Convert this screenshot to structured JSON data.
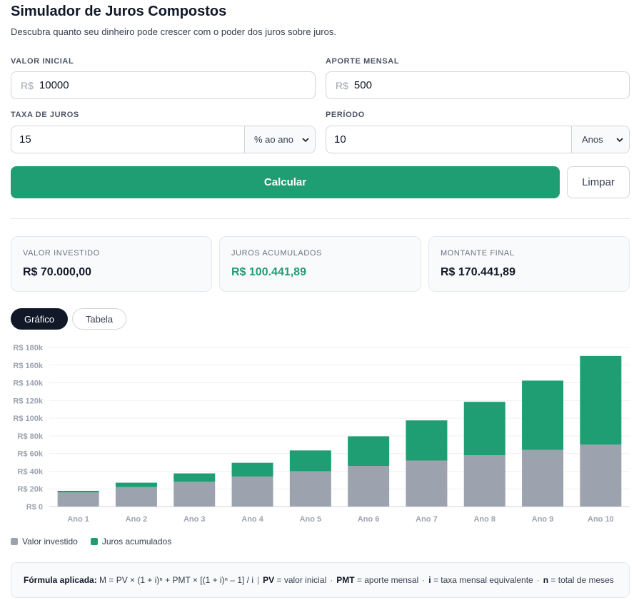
{
  "header": {
    "title": "Simulador de Juros Compostos",
    "subtitle": "Descubra quanto seu dinheiro pode crescer com o poder dos juros sobre juros."
  },
  "form": {
    "valor_inicial": {
      "label": "VALOR INICIAL",
      "prefix": "R$",
      "value": "10000"
    },
    "aporte_mensal": {
      "label": "APORTE MENSAL",
      "prefix": "R$",
      "value": "500"
    },
    "taxa_juros": {
      "label": "TAXA DE JUROS",
      "value": "15",
      "unit_selected": "% ao ano"
    },
    "periodo": {
      "label": "PERÍODO",
      "value": "10",
      "unit_selected": "Anos"
    },
    "calc_label": "Calcular",
    "clear_label": "Limpar"
  },
  "summary": {
    "invested": {
      "label": "VALOR INVESTIDO",
      "value": "R$ 70.000,00"
    },
    "interest": {
      "label": "JUROS ACUMULADOS",
      "value": "R$ 100.441,89"
    },
    "final": {
      "label": "MONTANTE FINAL",
      "value": "R$ 170.441,89"
    }
  },
  "tabs": {
    "chart": "Gráfico",
    "table": "Tabela",
    "active": "chart"
  },
  "colors": {
    "invested": "#9ca3af",
    "interest": "#1f9e74",
    "accent": "#1f9e74",
    "dark": "#111827"
  },
  "chart_data": {
    "type": "bar",
    "stacked": true,
    "categories": [
      "Ano 1",
      "Ano 2",
      "Ano 3",
      "Ano 4",
      "Ano 5",
      "Ano 6",
      "Ano 7",
      "Ano 8",
      "Ano 9",
      "Ano 10"
    ],
    "series": [
      {
        "name": "Valor investido",
        "values": [
          16000,
          22000,
          28000,
          34000,
          40000,
          46000,
          52000,
          58000,
          64000,
          70000
        ]
      },
      {
        "name": "Juros acumulados",
        "values": [
          1800,
          5000,
          9500,
          15500,
          23500,
          33500,
          45500,
          60500,
          78500,
          100441.89
        ]
      }
    ],
    "y_ticks": [
      "R$ 0",
      "R$ 20k",
      "R$ 40k",
      "R$ 60k",
      "R$ 80k",
      "R$ 100k",
      "R$ 120k",
      "R$ 140k",
      "R$ 160k",
      "R$ 180k"
    ],
    "ylim": [
      0,
      180000
    ],
    "grid": true,
    "legend_position": "bottom-left"
  },
  "formula": {
    "label": "Fórmula aplicada:",
    "expression": "M = PV × (1 + i)ⁿ + PMT × [(1 + i)ⁿ – 1] / i",
    "pv_key": "PV",
    "pv_desc": "= valor inicial",
    "pmt_key": "PMT",
    "pmt_desc": "= aporte mensal",
    "i_key": "i",
    "i_desc": "= taxa mensal equivalente",
    "n_key": "n",
    "n_desc": "= total de meses"
  }
}
